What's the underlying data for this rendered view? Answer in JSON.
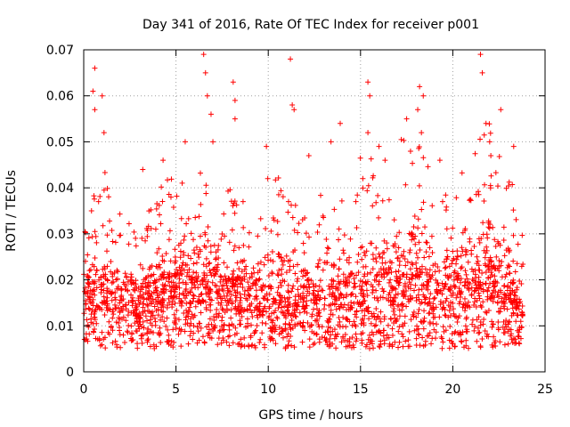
{
  "chart_data": {
    "type": "scatter",
    "title": "Day 341 of 2016, Rate Of TEC Index for receiver p001",
    "xlabel": "GPS time / hours",
    "ylabel": "ROTI / TECUs",
    "xlim": [
      0,
      25
    ],
    "ylim": [
      0,
      0.07
    ],
    "x_ticks": [
      "0",
      "5",
      "10",
      "15",
      "20",
      "25"
    ],
    "y_ticks": [
      "0",
      "0.01",
      "0.02",
      "0.03",
      "0.04",
      "0.05",
      "0.06",
      "0.07"
    ],
    "grid": true,
    "grid_style": "dotted",
    "marker": "+",
    "color": "#ff0000",
    "legend": "none",
    "x_range_of_points": [
      0,
      23.8
    ],
    "envelope": {
      "x": [
        0,
        1,
        2,
        3,
        4,
        5,
        6,
        7,
        8,
        9,
        10,
        11,
        12,
        13,
        14,
        15,
        16,
        17,
        18,
        19,
        20,
        21,
        22,
        23,
        23.8
      ],
      "typical_min": [
        0.006,
        0.005,
        0.005,
        0.005,
        0.005,
        0.005,
        0.006,
        0.005,
        0.005,
        0.005,
        0.005,
        0.005,
        0.005,
        0.005,
        0.005,
        0.005,
        0.005,
        0.005,
        0.005,
        0.005,
        0.005,
        0.005,
        0.005,
        0.005,
        0.006
      ],
      "typical_max": [
        0.03,
        0.045,
        0.035,
        0.03,
        0.04,
        0.045,
        0.05,
        0.045,
        0.04,
        0.038,
        0.045,
        0.04,
        0.035,
        0.04,
        0.042,
        0.05,
        0.045,
        0.05,
        0.055,
        0.04,
        0.04,
        0.05,
        0.055,
        0.045,
        0.03
      ],
      "median": [
        0.012,
        0.014,
        0.013,
        0.012,
        0.013,
        0.014,
        0.015,
        0.014,
        0.013,
        0.013,
        0.013,
        0.012,
        0.012,
        0.012,
        0.013,
        0.014,
        0.014,
        0.014,
        0.015,
        0.013,
        0.013,
        0.014,
        0.015,
        0.013,
        0.011
      ]
    },
    "outliers": [
      {
        "x": 0.6,
        "y": 0.066
      },
      {
        "x": 0.5,
        "y": 0.061
      },
      {
        "x": 0.6,
        "y": 0.057
      },
      {
        "x": 1.0,
        "y": 0.06
      },
      {
        "x": 1.1,
        "y": 0.052
      },
      {
        "x": 3.2,
        "y": 0.044
      },
      {
        "x": 4.3,
        "y": 0.046
      },
      {
        "x": 5.5,
        "y": 0.05
      },
      {
        "x": 6.5,
        "y": 0.069
      },
      {
        "x": 6.6,
        "y": 0.065
      },
      {
        "x": 6.7,
        "y": 0.06
      },
      {
        "x": 6.9,
        "y": 0.056
      },
      {
        "x": 7.0,
        "y": 0.05
      },
      {
        "x": 8.1,
        "y": 0.063
      },
      {
        "x": 8.2,
        "y": 0.059
      },
      {
        "x": 8.2,
        "y": 0.055
      },
      {
        "x": 9.9,
        "y": 0.049
      },
      {
        "x": 11.2,
        "y": 0.068
      },
      {
        "x": 11.3,
        "y": 0.058
      },
      {
        "x": 11.4,
        "y": 0.057
      },
      {
        "x": 12.2,
        "y": 0.047
      },
      {
        "x": 13.4,
        "y": 0.05
      },
      {
        "x": 13.9,
        "y": 0.054
      },
      {
        "x": 15.4,
        "y": 0.063
      },
      {
        "x": 15.5,
        "y": 0.06
      },
      {
        "x": 15.4,
        "y": 0.052
      },
      {
        "x": 16.0,
        "y": 0.049
      },
      {
        "x": 17.5,
        "y": 0.055
      },
      {
        "x": 18.2,
        "y": 0.062
      },
      {
        "x": 18.4,
        "y": 0.06
      },
      {
        "x": 18.1,
        "y": 0.057
      },
      {
        "x": 18.3,
        "y": 0.052
      },
      {
        "x": 19.3,
        "y": 0.046
      },
      {
        "x": 21.5,
        "y": 0.069
      },
      {
        "x": 21.6,
        "y": 0.065
      },
      {
        "x": 21.8,
        "y": 0.054
      },
      {
        "x": 22.0,
        "y": 0.05
      },
      {
        "x": 22.6,
        "y": 0.057
      },
      {
        "x": 23.3,
        "y": 0.049
      }
    ]
  }
}
